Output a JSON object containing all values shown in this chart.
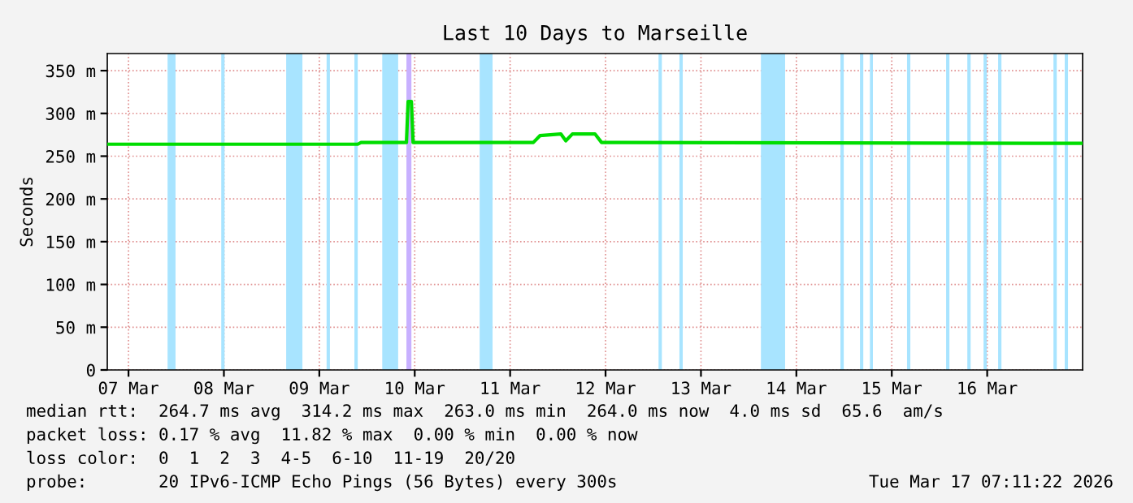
{
  "chart_data": {
    "type": "line",
    "title": "Last 10 Days to Marseille",
    "ylabel": "Seconds",
    "xlim": [
      "2026-03-06T18:40",
      "2026-03-17T00:00"
    ],
    "xticks": [
      {
        "value": "2026-03-07",
        "label": "07 Mar"
      },
      {
        "value": "2026-03-08",
        "label": "08 Mar"
      },
      {
        "value": "2026-03-09",
        "label": "09 Mar"
      },
      {
        "value": "2026-03-10",
        "label": "10 Mar"
      },
      {
        "value": "2026-03-11",
        "label": "11 Mar"
      },
      {
        "value": "2026-03-12",
        "label": "12 Mar"
      },
      {
        "value": "2026-03-13",
        "label": "13 Mar"
      },
      {
        "value": "2026-03-14",
        "label": "14 Mar"
      },
      {
        "value": "2026-03-15",
        "label": "15 Mar"
      },
      {
        "value": "2026-03-16",
        "label": "16 Mar"
      }
    ],
    "ylim": [
      0,
      370
    ],
    "yticks": [
      0,
      {
        "value": 50,
        "label": "50 m"
      },
      {
        "value": 100,
        "label": "100 m"
      },
      {
        "value": 150,
        "label": "150 m"
      },
      {
        "value": 200,
        "label": "200 m"
      },
      {
        "value": 250,
        "label": "250 m"
      },
      {
        "value": 300,
        "label": "300 m"
      },
      {
        "value": 350,
        "label": "350 m"
      }
    ],
    "grid": true,
    "marker": "none",
    "line_style": "solid",
    "series": [
      {
        "color": "#00dd00",
        "x": [
          "2026-03-06T18:40",
          "2026-03-09T09:40",
          "2026-03-09T10:30",
          "2026-03-09T21:55",
          "2026-03-09T22:20",
          "2026-03-09T23:10",
          "2026-03-09T23:35",
          "2026-03-11T05:50",
          "2026-03-11T07:30",
          "2026-03-11T12:45",
          "2026-03-11T14:00",
          "2026-03-11T15:40",
          "2026-03-11T21:20",
          "2026-03-11T23:00",
          "2026-03-17T00:00"
        ],
        "values": [
          264,
          264,
          266,
          266,
          314,
          314,
          266,
          266,
          274,
          276,
          268,
          276,
          276,
          266,
          265
        ]
      }
    ],
    "bands": [
      {
        "axis": "x",
        "from": "2026-03-07T09:50",
        "to": "2026-03-07T11:50",
        "color": "#a8e4ff"
      },
      {
        "axis": "x",
        "from": "2026-03-07T23:20",
        "to": "2026-03-08T00:10",
        "color": "#a8e4ff"
      },
      {
        "axis": "x",
        "from": "2026-03-08T15:40",
        "to": "2026-03-08T19:45",
        "color": "#a8e4ff"
      },
      {
        "axis": "x",
        "from": "2026-03-09T01:50",
        "to": "2026-03-09T02:40",
        "color": "#a8e4ff"
      },
      {
        "axis": "x",
        "from": "2026-03-09T08:50",
        "to": "2026-03-09T09:40",
        "color": "#a8e4ff"
      },
      {
        "axis": "x",
        "from": "2026-03-09T15:50",
        "to": "2026-03-09T19:50",
        "color": "#a8e4ff"
      },
      {
        "axis": "x",
        "from": "2026-03-09T21:55",
        "to": "2026-03-09T23:10",
        "color": "#c8b0ff"
      },
      {
        "axis": "x",
        "from": "2026-03-10T16:20",
        "to": "2026-03-10T19:35",
        "color": "#a8e4ff"
      },
      {
        "axis": "x",
        "from": "2026-03-12T13:20",
        "to": "2026-03-12T14:10",
        "color": "#a8e4ff"
      },
      {
        "axis": "x",
        "from": "2026-03-12T18:35",
        "to": "2026-03-12T19:25",
        "color": "#a8e4ff"
      },
      {
        "axis": "x",
        "from": "2026-03-13T15:05",
        "to": "2026-03-13T21:10",
        "color": "#a8e4ff"
      },
      {
        "axis": "x",
        "from": "2026-03-14T11:05",
        "to": "2026-03-14T11:55",
        "color": "#a8e4ff"
      },
      {
        "axis": "x",
        "from": "2026-03-14T16:00",
        "to": "2026-03-14T16:50",
        "color": "#a8e4ff"
      },
      {
        "axis": "x",
        "from": "2026-03-14T18:30",
        "to": "2026-03-14T19:15",
        "color": "#a8e4ff"
      },
      {
        "axis": "x",
        "from": "2026-03-15T03:50",
        "to": "2026-03-15T04:40",
        "color": "#a8e4ff"
      },
      {
        "axis": "x",
        "from": "2026-03-15T13:40",
        "to": "2026-03-15T14:30",
        "color": "#a8e4ff"
      },
      {
        "axis": "x",
        "from": "2026-03-15T19:00",
        "to": "2026-03-15T19:50",
        "color": "#a8e4ff"
      },
      {
        "axis": "x",
        "from": "2026-03-15T23:05",
        "to": "2026-03-15T23:55",
        "color": "#a8e4ff"
      },
      {
        "axis": "x",
        "from": "2026-03-16T02:45",
        "to": "2026-03-16T03:35",
        "color": "#a8e4ff"
      },
      {
        "axis": "x",
        "from": "2026-03-16T16:40",
        "to": "2026-03-16T17:30",
        "color": "#a8e4ff"
      },
      {
        "axis": "x",
        "from": "2026-03-16T19:30",
        "to": "2026-03-16T20:20",
        "color": "#a8e4ff"
      }
    ],
    "annotations": [
      "median rtt:  264.7 ms avg  314.2 ms max  263.0 ms min  264.0 ms now  4.0 ms sd  65.6  am/s",
      "packet loss: 0.17 % avg  11.82 % max  0.00 % min  0.00 % now",
      "loss color:  0  1  2  3  4-5  6-10  11-19  20/20",
      "probe:       20 IPv6-ICMP Echo Pings (56 Bytes) every 300s",
      "Tue Mar 17 07:11:22 2026"
    ]
  }
}
